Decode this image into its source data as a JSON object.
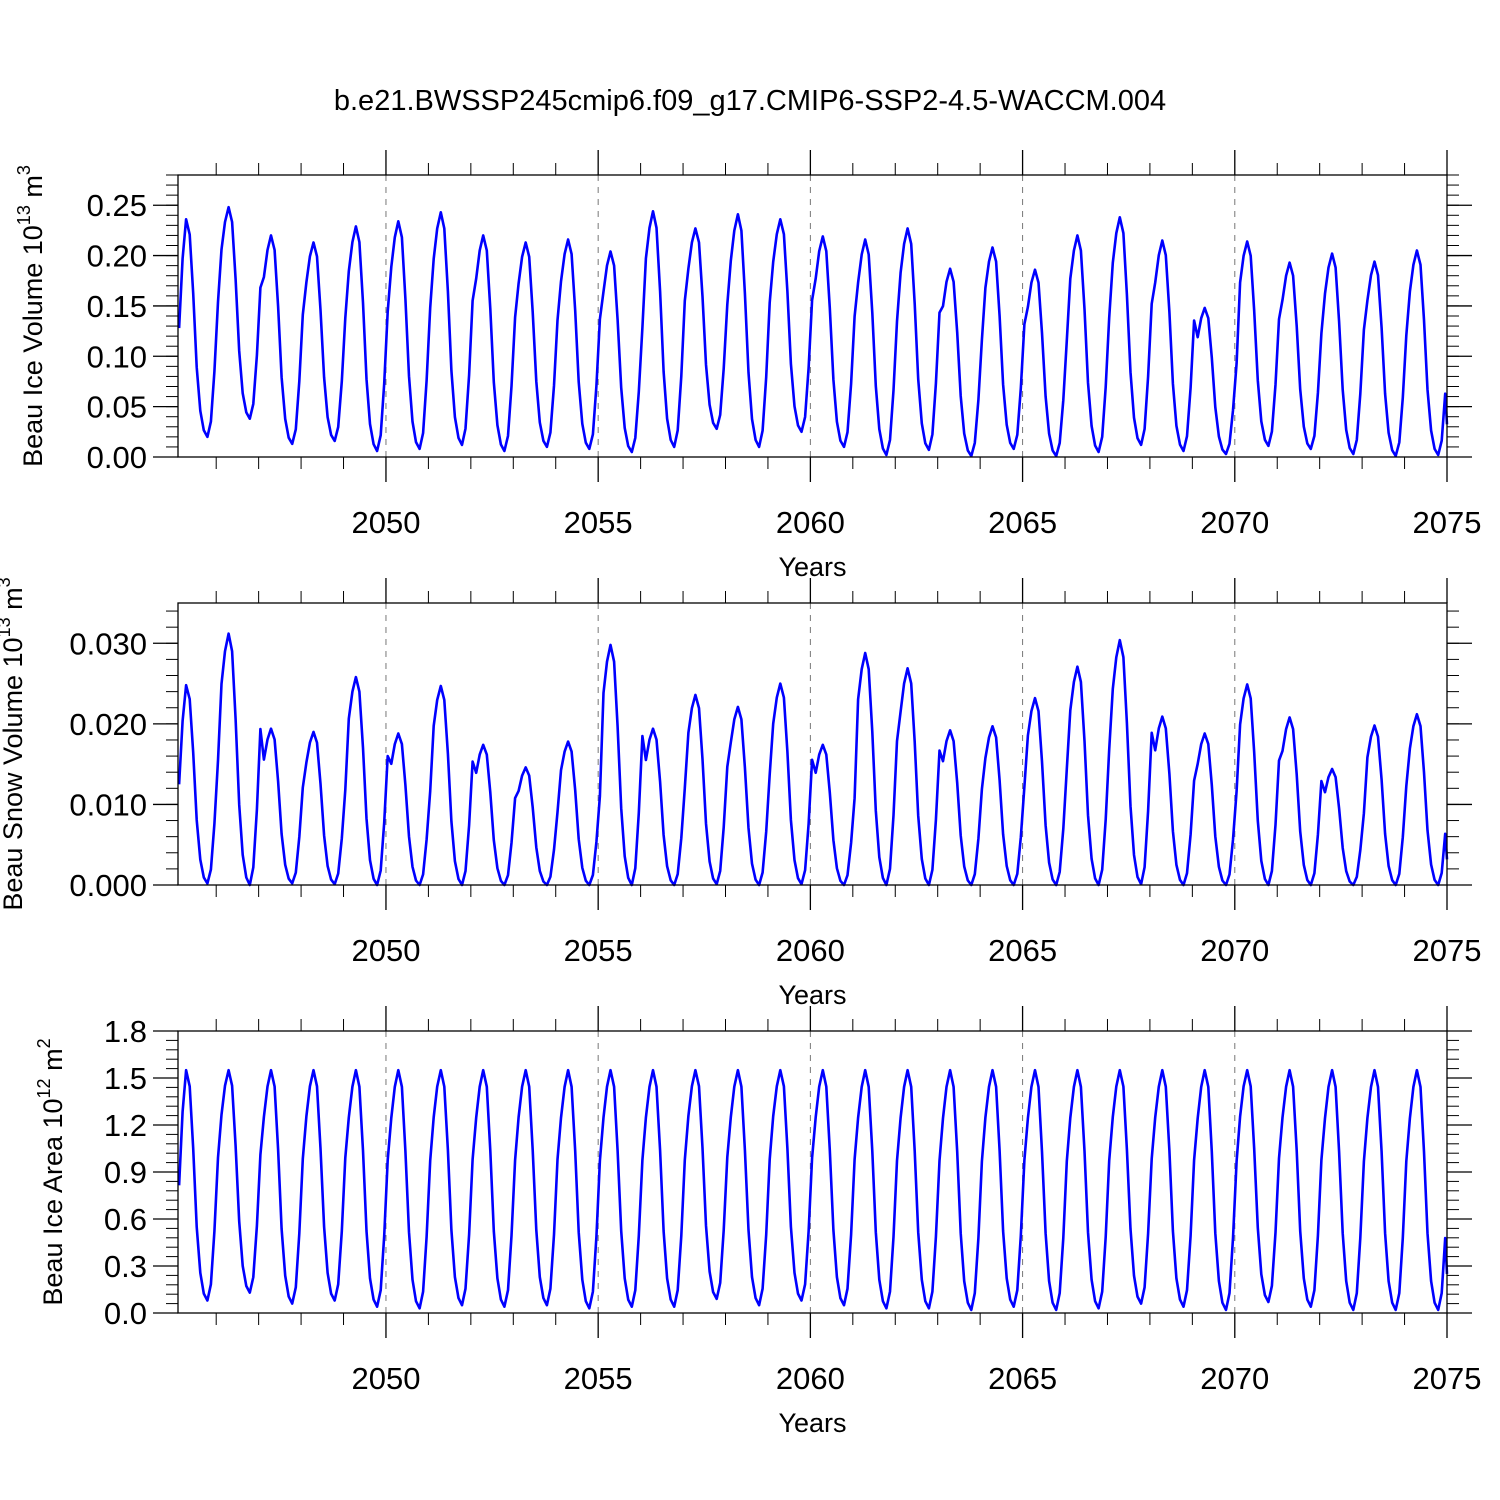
{
  "title": "b.e21.BWSSP245cmip6.f09_g17.CMIP6-SSP2-4.5-WACCM.004",
  "colors": {
    "line": "#0000ff",
    "axis": "#000000",
    "grid": "#777777",
    "background": "#ffffff"
  },
  "chart_data": [
    {
      "type": "line",
      "ylabel_main": "Beau Ice Volume 10",
      "ylabel_exp": "13",
      "ylabel_unit": " m",
      "ylabel_unit_exp": "3",
      "xlabel": "Years",
      "xlim": [
        2045.1,
        2075.0
      ],
      "ylim": [
        0.0,
        0.28
      ],
      "ytick_values": [
        0.0,
        0.05,
        0.1,
        0.15,
        0.2,
        0.25
      ],
      "ytick_labels": [
        "0.00",
        "0.05",
        "0.10",
        "0.15",
        "0.20",
        "0.25"
      ],
      "xtick_labels": [
        "2050",
        "2055",
        "2060",
        "2065",
        "2070",
        "2075"
      ],
      "xtick_values": [
        2050,
        2055,
        2060,
        2065,
        2070,
        2075
      ],
      "start_year": 2045.125,
      "peaks": [
        0.236,
        0.248,
        0.22,
        0.213,
        0.229,
        0.234,
        0.243,
        0.22,
        0.213,
        0.216,
        0.204,
        0.244,
        0.227,
        0.241,
        0.236,
        0.219,
        0.216,
        0.227,
        0.187,
        0.208,
        0.186,
        0.22,
        0.238,
        0.215,
        0.148,
        0.214,
        0.193,
        0.202,
        0.194,
        0.205
      ],
      "mins": [
        0.02,
        0.038,
        0.013,
        0.016,
        0.006,
        0.008,
        0.012,
        0.006,
        0.01,
        0.008,
        0.005,
        0.01,
        0.028,
        0.01,
        0.025,
        0.01,
        0.002,
        0.007,
        0.001,
        0.008,
        0.001,
        0.005,
        0.012,
        0.006,
        0.003,
        0.011,
        0.008,
        0.003,
        0.001,
        0.002
      ],
      "series_name": "Beau Ice Volume"
    },
    {
      "type": "line",
      "ylabel_main": "Beau Snow Volume 10",
      "ylabel_exp": "13",
      "ylabel_unit": " m",
      "ylabel_unit_exp": "3",
      "xlabel": "Years",
      "xlim": [
        2045.1,
        2075.0
      ],
      "ylim": [
        0.0,
        0.035
      ],
      "ytick_values": [
        0.0,
        0.01,
        0.02,
        0.03
      ],
      "ytick_labels": [
        "0.000",
        "0.010",
        "0.020",
        "0.030"
      ],
      "xtick_labels": [
        "2050",
        "2055",
        "2060",
        "2065",
        "2070",
        "2075"
      ],
      "xtick_values": [
        2050,
        2055,
        2060,
        2065,
        2070,
        2075
      ],
      "start_year": 2045.125,
      "peaks": [
        0.0248,
        0.0312,
        0.0194,
        0.019,
        0.0258,
        0.0188,
        0.0247,
        0.0174,
        0.0146,
        0.0178,
        0.0298,
        0.0194,
        0.0236,
        0.0221,
        0.025,
        0.0174,
        0.0288,
        0.0269,
        0.0192,
        0.0197,
        0.0232,
        0.0271,
        0.0304,
        0.0209,
        0.0188,
        0.0249,
        0.0208,
        0.0144,
        0.0198,
        0.0212
      ],
      "mins": [
        0.0002,
        0.0,
        0.0002,
        0.0001,
        0.0,
        0.0,
        0.0,
        0.0,
        0.0,
        0.0,
        0.0,
        0.0,
        0.0001,
        0.0,
        0.0001,
        0.0,
        0.0,
        0.0,
        0.0,
        0.0,
        0.0,
        0.0,
        0.0001,
        0.0,
        0.0,
        0.0,
        0.0,
        0.0,
        0.0,
        0.0
      ],
      "series_name": "Beau Snow Volume"
    },
    {
      "type": "line",
      "ylabel_main": "Beau Ice Area 10",
      "ylabel_exp": "12",
      "ylabel_unit": " m",
      "ylabel_unit_exp": "2",
      "xlabel": "Years",
      "xlim": [
        2045.1,
        2075.0
      ],
      "ylim": [
        0.0,
        1.8
      ],
      "ytick_values": [
        0.0,
        0.3,
        0.6,
        0.9,
        1.2,
        1.5,
        1.8
      ],
      "ytick_labels": [
        "0.0",
        "0.3",
        "0.6",
        "0.9",
        "1.2",
        "1.5",
        "1.8"
      ],
      "xtick_labels": [
        "2050",
        "2055",
        "2060",
        "2065",
        "2070",
        "2075"
      ],
      "xtick_values": [
        2050,
        2055,
        2060,
        2065,
        2070,
        2075
      ],
      "start_year": 2045.125,
      "peaks": [
        1.55,
        1.55,
        1.55,
        1.55,
        1.55,
        1.55,
        1.55,
        1.55,
        1.55,
        1.55,
        1.55,
        1.55,
        1.55,
        1.55,
        1.55,
        1.55,
        1.55,
        1.55,
        1.55,
        1.55,
        1.55,
        1.55,
        1.55,
        1.55,
        1.55,
        1.55,
        1.55,
        1.55,
        1.55,
        1.55
      ],
      "mins": [
        0.08,
        0.13,
        0.06,
        0.08,
        0.04,
        0.03,
        0.05,
        0.04,
        0.05,
        0.03,
        0.04,
        0.04,
        0.09,
        0.05,
        0.08,
        0.05,
        0.03,
        0.03,
        0.02,
        0.04,
        0.02,
        0.03,
        0.06,
        0.04,
        0.02,
        0.07,
        0.04,
        0.02,
        0.02,
        0.02
      ],
      "series_name": "Beau Ice Area"
    }
  ]
}
